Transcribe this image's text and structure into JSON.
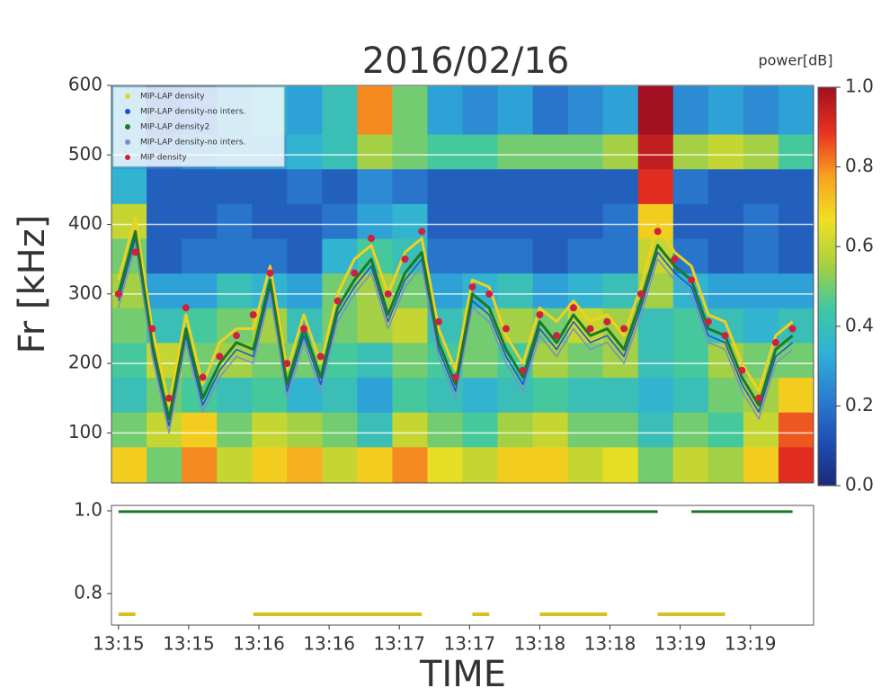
{
  "chart_data": [
    {
      "type": "heatmap",
      "title": "2016/02/16",
      "ylabel": "Fr [kHz]",
      "colorbar_label": "power[dB]",
      "xlim": [
        -0.05,
        4.95
      ],
      "ylim": [
        28,
        600
      ],
      "yticks": [
        100,
        200,
        300,
        400,
        500,
        600
      ],
      "grid": true,
      "x_edges": [
        -0.05,
        0.2,
        0.45,
        0.7,
        0.95,
        1.2,
        1.45,
        1.7,
        1.95,
        2.2,
        2.45,
        2.7,
        2.95,
        3.2,
        3.45,
        3.7,
        3.95,
        4.2,
        4.45,
        4.7,
        4.95
      ],
      "y_edges": [
        28,
        80,
        130,
        180,
        230,
        280,
        330,
        380,
        430,
        480,
        530,
        600
      ],
      "z": [
        [
          0.7,
          0.5,
          0.8,
          0.6,
          0.7,
          0.75,
          0.6,
          0.7,
          0.8,
          0.65,
          0.6,
          0.7,
          0.7,
          0.6,
          0.65,
          0.5,
          0.6,
          0.55,
          0.7,
          0.9
        ],
        [
          0.5,
          0.6,
          0.7,
          0.5,
          0.6,
          0.55,
          0.5,
          0.4,
          0.6,
          0.5,
          0.45,
          0.55,
          0.6,
          0.5,
          0.5,
          0.4,
          0.5,
          0.45,
          0.6,
          0.85
        ],
        [
          0.4,
          0.5,
          0.45,
          0.4,
          0.45,
          0.35,
          0.4,
          0.3,
          0.45,
          0.4,
          0.35,
          0.4,
          0.45,
          0.4,
          0.4,
          0.35,
          0.4,
          0.5,
          0.55,
          0.7
        ],
        [
          0.45,
          0.6,
          0.5,
          0.55,
          0.5,
          0.5,
          0.45,
          0.4,
          0.5,
          0.45,
          0.5,
          0.45,
          0.55,
          0.5,
          0.55,
          0.4,
          0.45,
          0.55,
          0.5,
          0.5
        ],
        [
          0.5,
          0.4,
          0.45,
          0.5,
          0.55,
          0.4,
          0.5,
          0.55,
          0.6,
          0.4,
          0.5,
          0.55,
          0.5,
          0.6,
          0.55,
          0.4,
          0.45,
          0.4,
          0.35,
          0.4
        ],
        [
          0.55,
          0.3,
          0.3,
          0.4,
          0.35,
          0.3,
          0.5,
          0.55,
          0.5,
          0.3,
          0.35,
          0.4,
          0.3,
          0.35,
          0.4,
          0.55,
          0.35,
          0.3,
          0.3,
          0.3
        ],
        [
          0.5,
          0.15,
          0.2,
          0.2,
          0.2,
          0.15,
          0.35,
          0.45,
          0.4,
          0.2,
          0.2,
          0.2,
          0.15,
          0.2,
          0.2,
          0.6,
          0.2,
          0.15,
          0.2,
          0.15
        ],
        [
          0.6,
          0.15,
          0.15,
          0.2,
          0.15,
          0.15,
          0.2,
          0.3,
          0.35,
          0.15,
          0.15,
          0.15,
          0.15,
          0.15,
          0.2,
          0.7,
          0.15,
          0.15,
          0.2,
          0.15
        ],
        [
          0.35,
          0.15,
          0.15,
          0.15,
          0.15,
          0.2,
          0.15,
          0.25,
          0.2,
          0.15,
          0.15,
          0.15,
          0.15,
          0.15,
          0.15,
          0.9,
          0.2,
          0.15,
          0.15,
          0.15
        ],
        [
          0.3,
          0.2,
          0.25,
          0.3,
          0.3,
          0.35,
          0.4,
          0.55,
          0.5,
          0.45,
          0.45,
          0.5,
          0.5,
          0.5,
          0.55,
          0.95,
          0.55,
          0.6,
          0.55,
          0.45
        ],
        [
          0.3,
          0.15,
          0.2,
          0.3,
          0.35,
          0.3,
          0.4,
          0.8,
          0.5,
          0.3,
          0.25,
          0.3,
          0.2,
          0.25,
          0.3,
          1.0,
          0.25,
          0.3,
          0.25,
          0.3
        ]
      ],
      "clim": [
        0,
        1
      ],
      "cticks": [
        {
          "value": 0,
          "label": "0.0"
        },
        0.2,
        0.4,
        0.6,
        0.8,
        {
          "value": 1,
          "label": "1.0"
        }
      ],
      "colormap": [
        "#1b2a7a",
        "#1f4fb5",
        "#2a7fd0",
        "#30b0d8",
        "#40c8a0",
        "#a8d040",
        "#f0e020",
        "#f8a020",
        "#e83020",
        "#a01020"
      ],
      "legend": "upper left",
      "x": [
        0,
        0.12,
        0.24,
        0.36,
        0.48,
        0.6,
        0.72,
        0.84,
        0.96,
        1.08,
        1.2,
        1.32,
        1.44,
        1.56,
        1.68,
        1.8,
        1.92,
        2.04,
        2.16,
        2.28,
        2.4,
        2.52,
        2.64,
        2.76,
        2.88,
        3,
        3.12,
        3.24,
        3.36,
        3.48,
        3.6,
        3.72,
        3.84,
        3.96,
        4.08,
        4.2,
        4.32,
        4.44,
        4.56,
        4.68,
        4.8
      ],
      "series": [
        {
          "name": "MIP-LAP density",
          "color": "#f0d020",
          "style": "line",
          "values": [
            320,
            410,
            250,
            140,
            270,
            170,
            230,
            250,
            250,
            340,
            190,
            270,
            200,
            300,
            350,
            370,
            300,
            360,
            380,
            250,
            190,
            320,
            310,
            240,
            200,
            280,
            260,
            290,
            260,
            270,
            240,
            310,
            400,
            360,
            340,
            270,
            260,
            200,
            160,
            240,
            260
          ]
        },
        {
          "name": "MIP-LAP density-no inters.",
          "color": "#2050d0",
          "style": "line",
          "values": [
            290,
            380,
            220,
            110,
            240,
            140,
            190,
            220,
            210,
            310,
            160,
            240,
            170,
            270,
            310,
            340,
            260,
            320,
            350,
            220,
            160,
            290,
            270,
            210,
            170,
            250,
            220,
            260,
            230,
            240,
            210,
            280,
            360,
            330,
            310,
            240,
            230,
            170,
            130,
            210,
            230
          ]
        },
        {
          "name": "MIP-LAP density2",
          "color": "#1a7a2a",
          "style": "line",
          "values": [
            300,
            390,
            230,
            120,
            250,
            150,
            200,
            230,
            220,
            320,
            170,
            250,
            180,
            280,
            320,
            350,
            270,
            330,
            360,
            230,
            170,
            300,
            280,
            220,
            180,
            260,
            230,
            270,
            240,
            250,
            220,
            290,
            370,
            340,
            320,
            250,
            240,
            180,
            140,
            220,
            240
          ]
        },
        {
          "name": "MIP-LAP density-no inters.",
          "color": "#7a90c0",
          "style": "line",
          "values": [
            280,
            370,
            210,
            100,
            230,
            130,
            180,
            210,
            200,
            300,
            150,
            230,
            160,
            260,
            300,
            330,
            250,
            310,
            340,
            210,
            150,
            280,
            260,
            200,
            160,
            240,
            210,
            250,
            220,
            230,
            200,
            270,
            350,
            320,
            300,
            230,
            220,
            160,
            120,
            200,
            220
          ]
        },
        {
          "name": "MIP density",
          "color": "#d02040",
          "style": "markers",
          "values": [
            300,
            360,
            250,
            150,
            280,
            180,
            210,
            240,
            270,
            330,
            200,
            250,
            210,
            290,
            330,
            380,
            300,
            350,
            390,
            260,
            180,
            310,
            300,
            250,
            190,
            270,
            240,
            280,
            250,
            260,
            250,
            300,
            390,
            350,
            320,
            260,
            240,
            190,
            150,
            230,
            250
          ]
        }
      ]
    },
    {
      "type": "line",
      "xlabel": "TIME",
      "xlim": [
        -0.05,
        4.95
      ],
      "ylim": [
        0.724,
        1.013
      ],
      "yticks": [
        0.8,
        {
          "value": 1,
          "label": "1.0"
        }
      ],
      "xticks": [
        {
          "value": 0,
          "label": "13:15"
        },
        {
          "value": 0.5,
          "label": "13:15"
        },
        {
          "value": 1,
          "label": "13:16"
        },
        {
          "value": 1.5,
          "label": "13:16"
        },
        {
          "value": 2,
          "label": "13:17"
        },
        {
          "value": 2.5,
          "label": "13:17"
        },
        {
          "value": 3,
          "label": "13:18"
        },
        {
          "value": 3.5,
          "label": "13:18"
        },
        {
          "value": 4,
          "label": "13:19"
        },
        {
          "value": 4.5,
          "label": "13:19"
        }
      ],
      "x": [
        0,
        0.12,
        0.24,
        0.36,
        0.48,
        0.6,
        0.72,
        0.84,
        0.96,
        1.08,
        1.2,
        1.32,
        1.44,
        1.56,
        1.68,
        1.8,
        1.92,
        2.04,
        2.16,
        2.28,
        2.4,
        2.52,
        2.64,
        2.76,
        2.88,
        3,
        3.12,
        3.24,
        3.36,
        3.48,
        3.6,
        3.72,
        3.84,
        3.96,
        4.08,
        4.2,
        4.32,
        4.44,
        4.56,
        4.68,
        4.8
      ],
      "series": [
        {
          "color": "#1a7a2a",
          "values": [
            0.998,
            0.998,
            0.998,
            0.998,
            0.998,
            0.998,
            0.998,
            0.998,
            0.998,
            0.998,
            0.998,
            0.998,
            0.998,
            0.998,
            0.998,
            0.998,
            0.998,
            0.998,
            0.998,
            0.998,
            0.998,
            0.998,
            0.998,
            0.998,
            0.998,
            0.998,
            0.998,
            0.998,
            0.998,
            0.998,
            0.998,
            0.998,
            0.998,
            null,
            0.998,
            0.998,
            0.998,
            0.998,
            0.998,
            0.998,
            0.998
          ]
        },
        {
          "color": "#d8c020",
          "values": [
            0.75,
            0.75,
            null,
            null,
            null,
            null,
            null,
            null,
            0.75,
            0.75,
            0.75,
            0.75,
            0.75,
            0.75,
            0.75,
            0.75,
            0.75,
            0.75,
            0.75,
            null,
            null,
            0.75,
            0.75,
            null,
            null,
            0.75,
            0.75,
            0.75,
            0.75,
            0.75,
            null,
            null,
            0.75,
            0.75,
            0.75,
            0.75,
            0.75,
            null,
            null,
            null,
            null
          ]
        }
      ]
    }
  ]
}
